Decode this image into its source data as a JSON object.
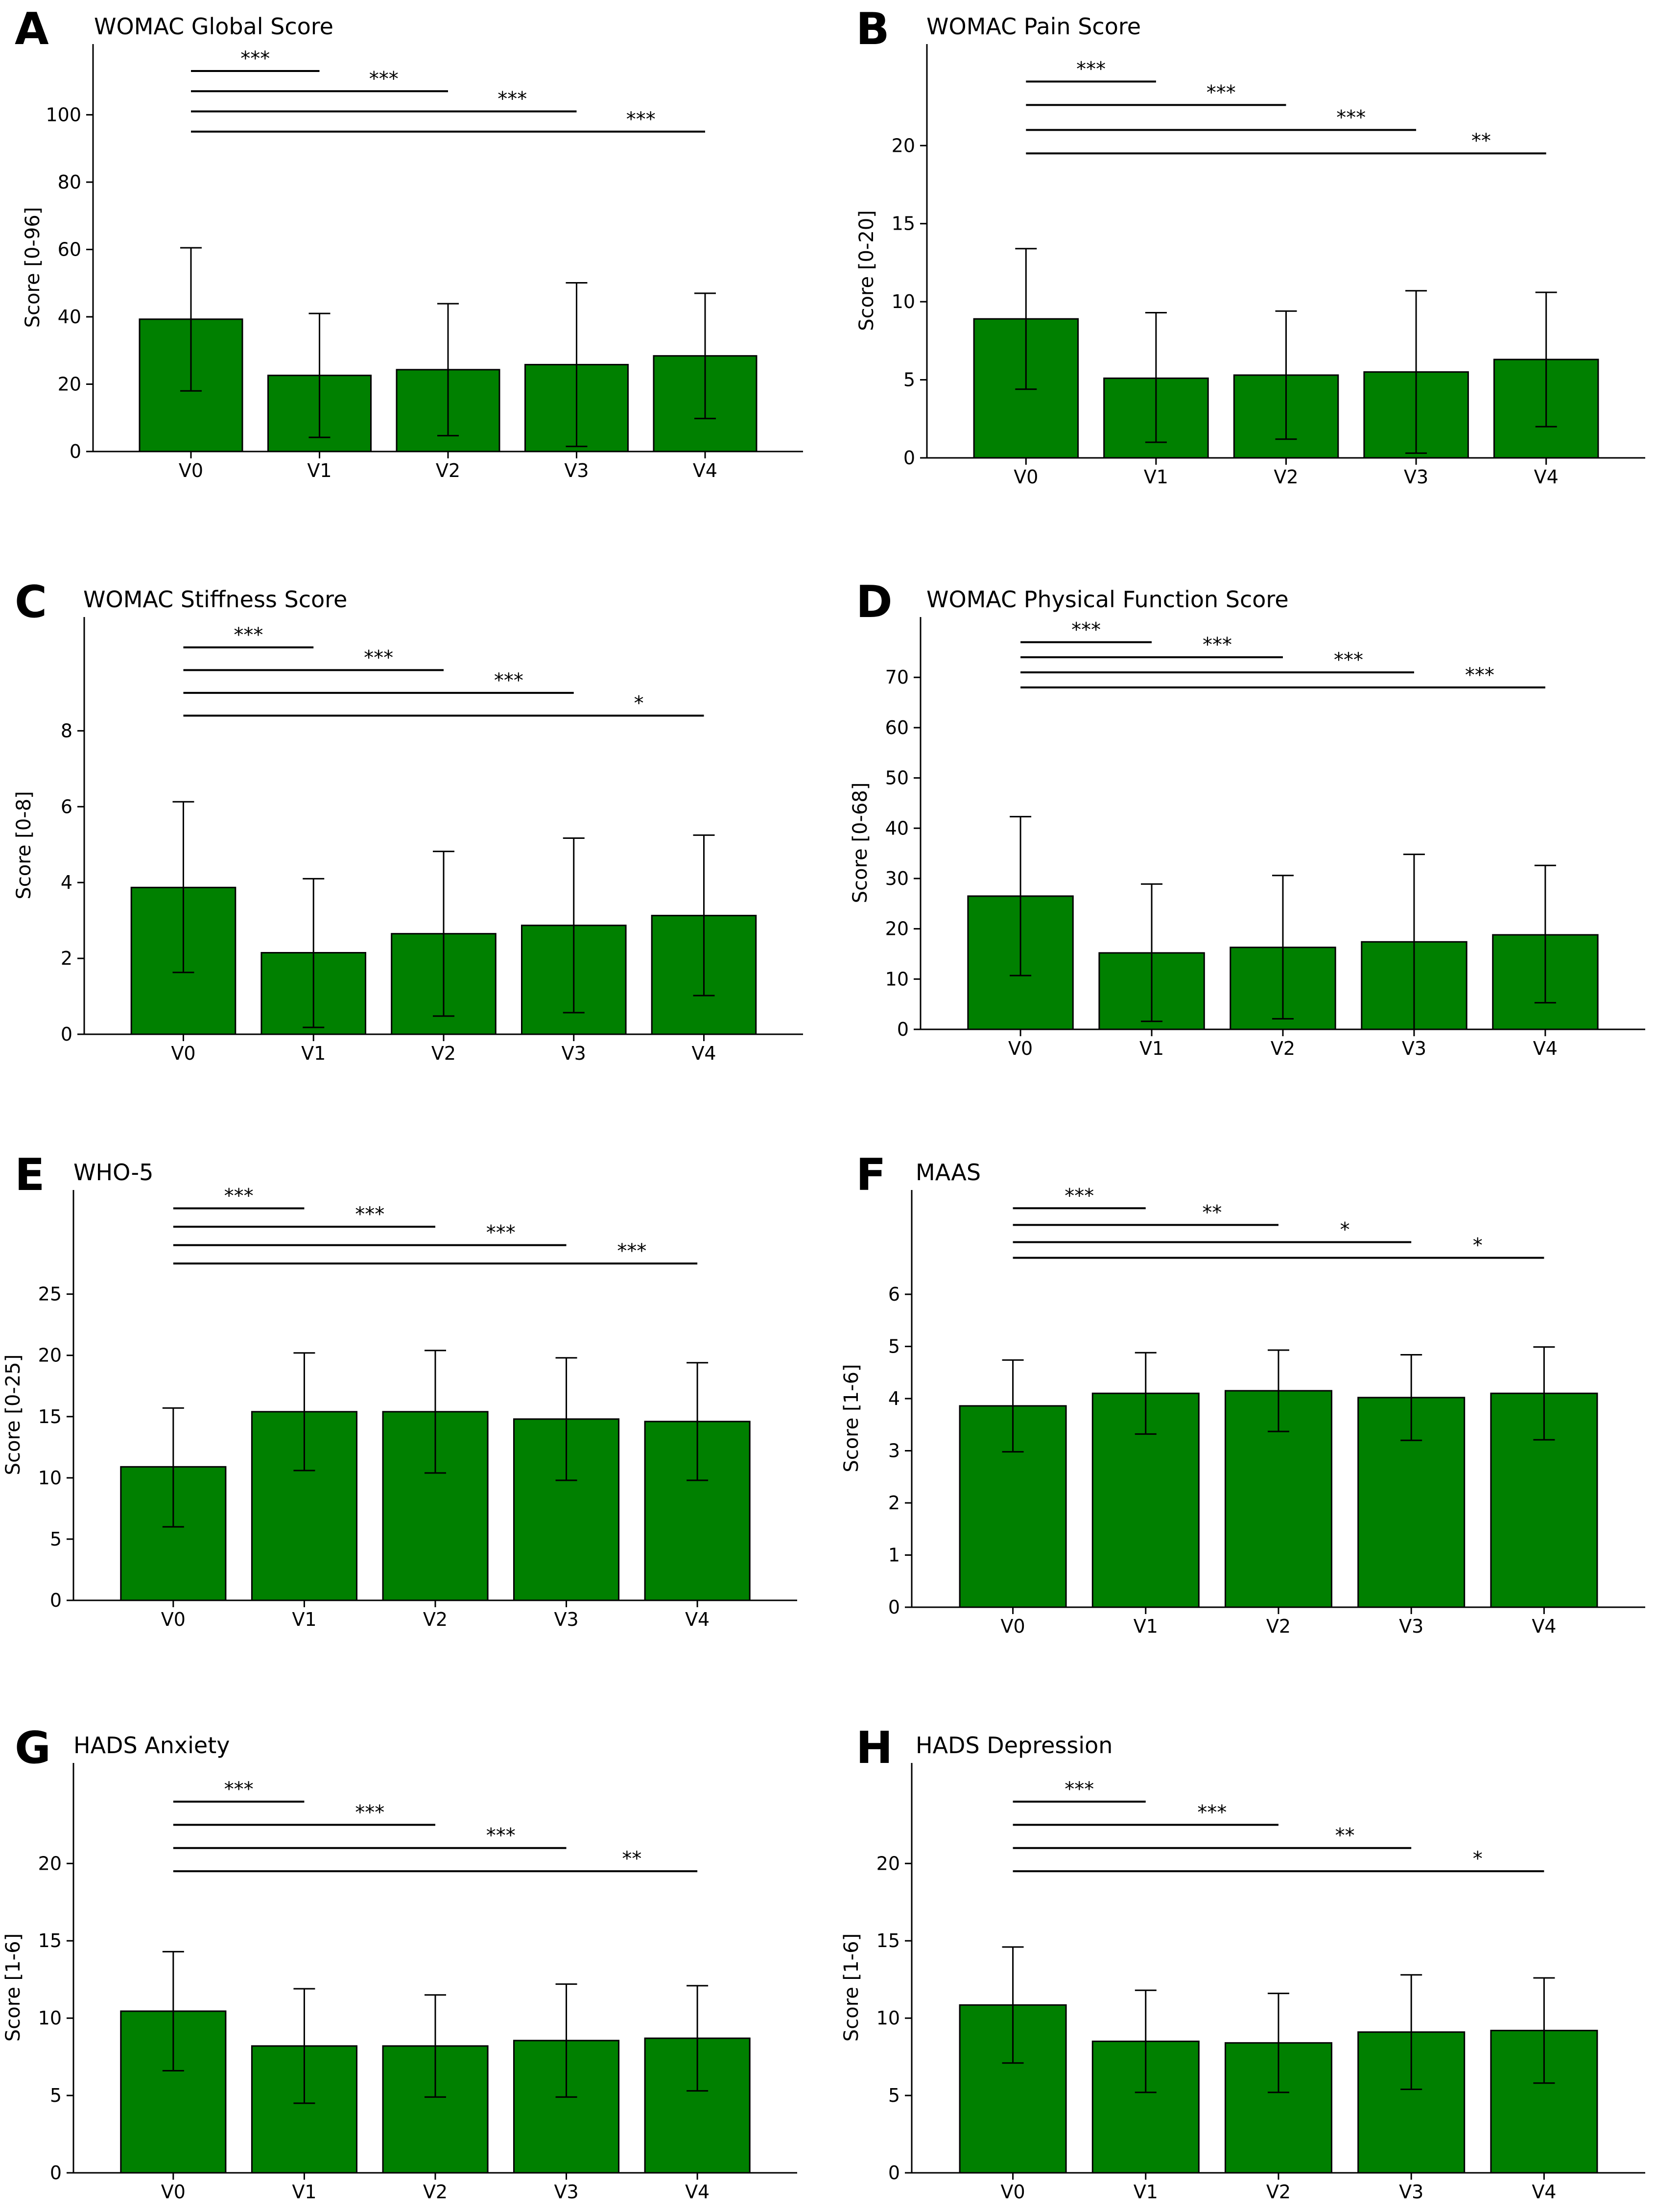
{
  "figure": {
    "bar_color": "#008000",
    "bar_edge_color": "#000000",
    "axis_color": "#000000"
  },
  "chart_data": [
    {
      "id": "A",
      "type": "bar",
      "letter": "A",
      "title": "WOMAC Global Score",
      "ylabel": "Score [0-96]",
      "xlabel": "",
      "categories": [
        "V0",
        "V1",
        "V2",
        "V3",
        "V4"
      ],
      "values": [
        39.3,
        22.6,
        24.3,
        25.8,
        28.4
      ],
      "error_low": [
        18.0,
        4.2,
        4.7,
        1.5,
        9.8
      ],
      "error_high": [
        60.5,
        41.0,
        43.9,
        50.1,
        47.0
      ],
      "yticks": [
        0,
        20,
        40,
        60,
        80,
        100
      ],
      "ylim": [
        0,
        121
      ],
      "significance": [
        {
          "from": "V0",
          "to": "V1",
          "y": 113,
          "label": "***"
        },
        {
          "from": "V0",
          "to": "V2",
          "y": 107,
          "label": "***"
        },
        {
          "from": "V0",
          "to": "V3",
          "y": 101,
          "label": "***"
        },
        {
          "from": "V0",
          "to": "V4",
          "y": 95,
          "label": "***"
        }
      ]
    },
    {
      "id": "B",
      "type": "bar",
      "letter": "B",
      "title": "WOMAC Pain Score",
      "ylabel": "Score [0-20]",
      "xlabel": "",
      "categories": [
        "V0",
        "V1",
        "V2",
        "V3",
        "V4"
      ],
      "values": [
        8.9,
        5.1,
        5.3,
        5.5,
        6.3
      ],
      "error_low": [
        4.4,
        1.0,
        1.2,
        0.3,
        2.0
      ],
      "error_high": [
        13.4,
        9.3,
        9.4,
        10.7,
        10.6
      ],
      "yticks": [
        0,
        5,
        10,
        15,
        20
      ],
      "ylim": [
        0,
        26.5
      ],
      "significance": [
        {
          "from": "V0",
          "to": "V1",
          "y": 24.1,
          "label": "***"
        },
        {
          "from": "V0",
          "to": "V2",
          "y": 22.6,
          "label": "***"
        },
        {
          "from": "V0",
          "to": "V3",
          "y": 21.0,
          "label": "***"
        },
        {
          "from": "V0",
          "to": "V4",
          "y": 19.5,
          "label": "**"
        }
      ]
    },
    {
      "id": "C",
      "type": "bar",
      "letter": "C",
      "title": "WOMAC Stiffness Score",
      "ylabel": "Score [0-8]",
      "xlabel": "",
      "categories": [
        "V0",
        "V1",
        "V2",
        "V3",
        "V4"
      ],
      "values": [
        3.87,
        2.15,
        2.65,
        2.87,
        3.13
      ],
      "error_low": [
        1.63,
        0.18,
        0.48,
        0.57,
        1.02
      ],
      "error_high": [
        6.13,
        4.1,
        4.82,
        5.17,
        5.25
      ],
      "yticks": [
        0,
        2,
        4,
        6,
        8
      ],
      "ylim": [
        0,
        11
      ],
      "significance": [
        {
          "from": "V0",
          "to": "V1",
          "y": 10.2,
          "label": "***"
        },
        {
          "from": "V0",
          "to": "V2",
          "y": 9.6,
          "label": "***"
        },
        {
          "from": "V0",
          "to": "V3",
          "y": 9.0,
          "label": "***"
        },
        {
          "from": "V0",
          "to": "V4",
          "y": 8.4,
          "label": "*"
        }
      ]
    },
    {
      "id": "D",
      "type": "bar",
      "letter": "D",
      "title": "WOMAC Physical Function Score",
      "ylabel": "Score [0-68]",
      "xlabel": "",
      "categories": [
        "V0",
        "V1",
        "V2",
        "V3",
        "V4"
      ],
      "values": [
        26.5,
        15.2,
        16.3,
        17.4,
        18.8
      ],
      "error_low": [
        10.7,
        1.6,
        2.1,
        0.0,
        5.3
      ],
      "error_high": [
        42.3,
        28.9,
        30.6,
        34.8,
        32.6
      ],
      "yticks": [
        0,
        10,
        20,
        30,
        40,
        50,
        60,
        70
      ],
      "ylim": [
        0,
        82
      ],
      "significance": [
        {
          "from": "V0",
          "to": "V1",
          "y": 77.0,
          "label": "***"
        },
        {
          "from": "V0",
          "to": "V2",
          "y": 74.0,
          "label": "***"
        },
        {
          "from": "V0",
          "to": "V3",
          "y": 71.0,
          "label": "***"
        },
        {
          "from": "V0",
          "to": "V4",
          "y": 68.0,
          "label": "***"
        }
      ]
    },
    {
      "id": "E",
      "type": "bar",
      "letter": "E",
      "title": "WHO-5",
      "ylabel": "Score [0-25]",
      "xlabel": "",
      "categories": [
        "V0",
        "V1",
        "V2",
        "V3",
        "V4"
      ],
      "values": [
        10.9,
        15.4,
        15.4,
        14.8,
        14.6
      ],
      "error_low": [
        6.0,
        10.6,
        10.4,
        9.8,
        9.8
      ],
      "error_high": [
        15.7,
        20.2,
        20.4,
        19.8,
        19.4
      ],
      "yticks": [
        0,
        5,
        10,
        15,
        20,
        25
      ],
      "ylim": [
        0,
        33.5
      ],
      "significance": [
        {
          "from": "V0",
          "to": "V1",
          "y": 32.0,
          "label": "***"
        },
        {
          "from": "V0",
          "to": "V2",
          "y": 30.5,
          "label": "***"
        },
        {
          "from": "V0",
          "to": "V3",
          "y": 29.0,
          "label": "***"
        },
        {
          "from": "V0",
          "to": "V4",
          "y": 27.5,
          "label": "***"
        }
      ]
    },
    {
      "id": "F",
      "type": "bar",
      "letter": "F",
      "title": "MAAS",
      "ylabel": "Score [1-6]",
      "xlabel": "",
      "categories": [
        "V0",
        "V1",
        "V2",
        "V3",
        "V4"
      ],
      "values": [
        3.86,
        4.1,
        4.15,
        4.02,
        4.1
      ],
      "error_low": [
        2.98,
        3.32,
        3.37,
        3.2,
        3.21
      ],
      "error_high": [
        4.74,
        4.88,
        4.93,
        4.84,
        4.99
      ],
      "yticks": [
        0,
        1,
        2,
        3,
        4,
        5,
        6
      ],
      "ylim": [
        0,
        8
      ],
      "significance": [
        {
          "from": "V0",
          "to": "V1",
          "y": 7.65,
          "label": "***"
        },
        {
          "from": "V0",
          "to": "V2",
          "y": 7.33,
          "label": "**"
        },
        {
          "from": "V0",
          "to": "V3",
          "y": 7.0,
          "label": "*"
        },
        {
          "from": "V0",
          "to": "V4",
          "y": 6.7,
          "label": "*"
        }
      ]
    },
    {
      "id": "G",
      "type": "bar",
      "letter": "G",
      "title": "HADS Anxiety",
      "ylabel": "Score [1-6]",
      "xlabel": "",
      "categories": [
        "V0",
        "V1",
        "V2",
        "V3",
        "V4"
      ],
      "values": [
        10.45,
        8.2,
        8.2,
        8.55,
        8.7
      ],
      "error_low": [
        6.6,
        4.5,
        4.9,
        4.9,
        5.3
      ],
      "error_high": [
        14.3,
        11.9,
        11.5,
        12.2,
        12.1
      ],
      "yticks": [
        0,
        5,
        10,
        15,
        20
      ],
      "ylim": [
        0,
        26.5
      ],
      "significance": [
        {
          "from": "V0",
          "to": "V1",
          "y": 24.0,
          "label": "***"
        },
        {
          "from": "V0",
          "to": "V2",
          "y": 22.5,
          "label": "***"
        },
        {
          "from": "V0",
          "to": "V3",
          "y": 21.0,
          "label": "***"
        },
        {
          "from": "V0",
          "to": "V4",
          "y": 19.5,
          "label": "**"
        }
      ]
    },
    {
      "id": "H",
      "type": "bar",
      "letter": "H",
      "title": "HADS Depression",
      "ylabel": "Score [1-6]",
      "xlabel": "",
      "categories": [
        "V0",
        "V1",
        "V2",
        "V3",
        "V4"
      ],
      "values": [
        10.85,
        8.5,
        8.4,
        9.1,
        9.2
      ],
      "error_low": [
        7.1,
        5.2,
        5.2,
        5.4,
        5.8
      ],
      "error_high": [
        14.6,
        11.8,
        11.6,
        12.8,
        12.6
      ],
      "yticks": [
        0,
        5,
        10,
        15,
        20
      ],
      "ylim": [
        0,
        26.5
      ],
      "significance": [
        {
          "from": "V0",
          "to": "V1",
          "y": 24.0,
          "label": "***"
        },
        {
          "from": "V0",
          "to": "V2",
          "y": 22.5,
          "label": "***"
        },
        {
          "from": "V0",
          "to": "V3",
          "y": 21.0,
          "label": "**"
        },
        {
          "from": "V0",
          "to": "V4",
          "y": 19.5,
          "label": "*"
        }
      ]
    }
  ]
}
